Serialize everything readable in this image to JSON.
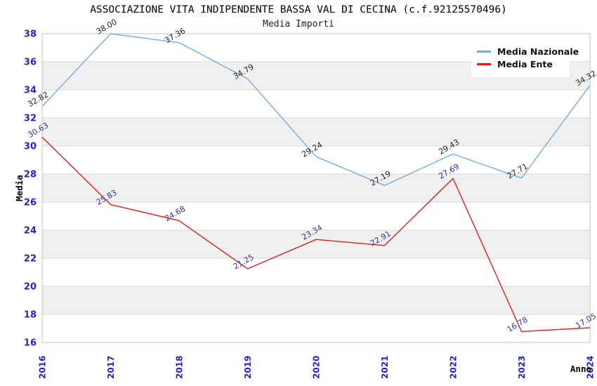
{
  "chart_data": {
    "type": "line",
    "title": "ASSOCIAZIONE VITA INDIPENDENTE BASSA VAL DI CECINA (c.f.92125570496)",
    "subtitle": "Media Importi",
    "xlabel": "Anno",
    "ylabel": "Media",
    "x": [
      "2016",
      "2017",
      "2018",
      "2019",
      "2020",
      "2021",
      "2022",
      "2023",
      "2024"
    ],
    "ylim": [
      16,
      38
    ],
    "ytick_step": 2,
    "yticks": [
      16,
      18,
      20,
      22,
      24,
      26,
      28,
      30,
      32,
      34,
      36,
      38
    ],
    "grid": true,
    "legend_position": "top-right",
    "series": [
      {
        "name": "Media Nazionale",
        "color": "#76abe0",
        "label_color": "#222222",
        "values": [
          32.82,
          38.0,
          37.36,
          34.79,
          29.24,
          27.19,
          29.43,
          27.71,
          34.32
        ]
      },
      {
        "name": "Media Ente",
        "color": "#e21d1d",
        "label_color": "#333399",
        "values": [
          30.63,
          25.83,
          24.68,
          21.25,
          23.34,
          22.91,
          27.69,
          16.78,
          17.05
        ]
      }
    ],
    "style": {
      "tick_label_color": "#2323d1",
      "band_color_even": "#ffffff",
      "band_color_odd": "#f0f0f0",
      "gridline_color": "#d9d9d9",
      "plot_border_color": "#c5c5c5",
      "title_color": "#000000",
      "subtitle_color": "#222222"
    }
  }
}
